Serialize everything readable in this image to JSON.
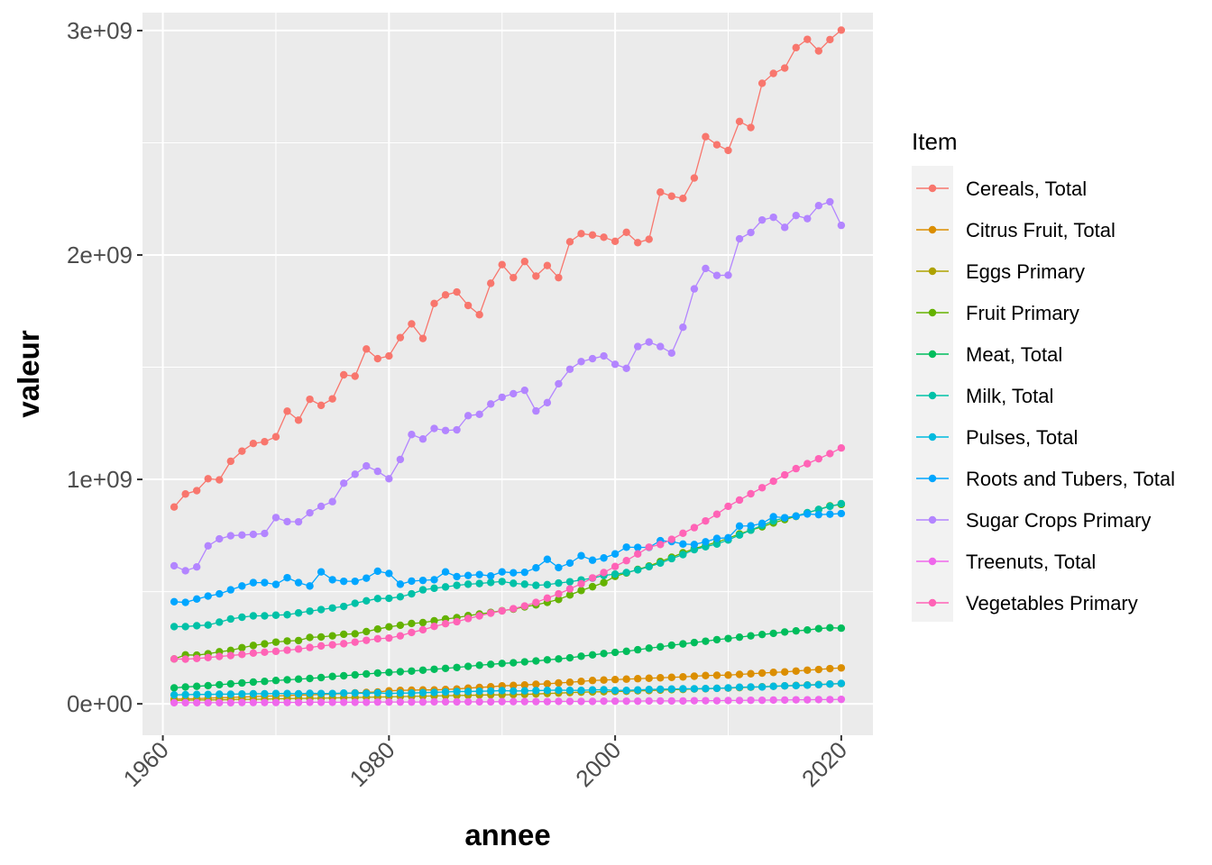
{
  "chart_data": {
    "type": "line",
    "xlabel": "annee",
    "ylabel": "valeur",
    "xlim": [
      1958.2,
      2022.8
    ],
    "ylim": [
      -140000000,
      3080000000
    ],
    "x_ticks": [
      1960,
      1980,
      2000,
      2020
    ],
    "x_tick_labels": [
      "1960",
      "1980",
      "2000",
      "2020"
    ],
    "y_ticks": [
      0,
      1000000000,
      2000000000,
      3000000000
    ],
    "y_tick_labels": [
      "0e+00",
      "1e+09",
      "2e+09",
      "3e+09"
    ],
    "grid": true,
    "legend_title": "Item",
    "legend_position": "right",
    "x": [
      1961,
      1962,
      1963,
      1964,
      1965,
      1966,
      1967,
      1968,
      1969,
      1970,
      1971,
      1972,
      1973,
      1974,
      1975,
      1976,
      1977,
      1978,
      1979,
      1980,
      1981,
      1982,
      1983,
      1984,
      1985,
      1986,
      1987,
      1988,
      1989,
      1990,
      1991,
      1992,
      1993,
      1994,
      1995,
      1996,
      1997,
      1998,
      1999,
      2000,
      2001,
      2002,
      2003,
      2004,
      2005,
      2006,
      2007,
      2008,
      2009,
      2010,
      2011,
      2012,
      2013,
      2014,
      2015,
      2016,
      2017,
      2018,
      2019,
      2020
    ],
    "series": [
      {
        "name": "Cereals, Total",
        "color": "#F8766D",
        "values": [
          877000000,
          935000000,
          950000000,
          1003000000,
          998000000,
          1081000000,
          1126000000,
          1160000000,
          1168000000,
          1190000000,
          1304000000,
          1264000000,
          1357000000,
          1330000000,
          1359000000,
          1466000000,
          1460000000,
          1581000000,
          1538000000,
          1550000000,
          1632000000,
          1693000000,
          1628000000,
          1784000000,
          1822000000,
          1835000000,
          1775000000,
          1734000000,
          1874000000,
          1957000000,
          1899000000,
          1971000000,
          1906000000,
          1953000000,
          1899000000,
          2059000000,
          2095000000,
          2089000000,
          2079000000,
          2061000000,
          2101000000,
          2055000000,
          2070000000,
          2280000000,
          2262000000,
          2252000000,
          2343000000,
          2527000000,
          2491000000,
          2466000000,
          2595000000,
          2568000000,
          2765000000,
          2809000000,
          2833000000,
          2924000000,
          2961000000,
          2909000000,
          2960000000,
          3002000000
        ]
      },
      {
        "name": "Citrus Fruit, Total",
        "color": "#DB8E00",
        "values": [
          21000000,
          22000000,
          23000000,
          25000000,
          27000000,
          28000000,
          30000000,
          32000000,
          34000000,
          35000000,
          37000000,
          39000000,
          40000000,
          42000000,
          44000000,
          46000000,
          49000000,
          51000000,
          53000000,
          58000000,
          60000000,
          61000000,
          62000000,
          62000000,
          64000000,
          66000000,
          70000000,
          73000000,
          76000000,
          80000000,
          82000000,
          84000000,
          87000000,
          89000000,
          93000000,
          96000000,
          100000000,
          104000000,
          106000000,
          108000000,
          110000000,
          112000000,
          114000000,
          116000000,
          118000000,
          120000000,
          123000000,
          126000000,
          127000000,
          128000000,
          131000000,
          134000000,
          137000000,
          140000000,
          142000000,
          146000000,
          150000000,
          153000000,
          157000000,
          160000000
        ]
      },
      {
        "name": "Eggs Primary",
        "color": "#AEA200",
        "values": [
          15000000,
          16000000,
          17000000,
          17000000,
          18000000,
          19000000,
          20000000,
          20000000,
          21000000,
          22000000,
          23000000,
          24000000,
          24000000,
          25000000,
          26000000,
          27000000,
          28000000,
          29000000,
          30000000,
          31000000,
          32000000,
          33000000,
          34000000,
          35000000,
          36000000,
          37000000,
          38000000,
          39000000,
          40000000,
          40000000,
          41000000,
          42000000,
          44000000,
          46000000,
          48000000,
          50000000,
          52000000,
          53000000,
          54000000,
          55000000,
          56000000,
          58000000,
          59000000,
          61000000,
          63000000,
          64000000,
          66000000,
          67000000,
          69000000,
          70000000,
          72000000,
          74000000,
          76000000,
          78000000,
          80000000,
          82000000,
          84000000,
          86000000,
          88000000,
          90000000
        ]
      },
      {
        "name": "Fruit Primary",
        "color": "#64B200",
        "values": [
          200000000,
          218000000,
          217000000,
          223000000,
          232000000,
          238000000,
          250000000,
          260000000,
          267000000,
          275000000,
          280000000,
          282000000,
          296000000,
          298000000,
          303000000,
          310000000,
          312000000,
          322000000,
          333000000,
          343000000,
          350000000,
          358000000,
          362000000,
          370000000,
          378000000,
          384000000,
          393000000,
          400000000,
          407000000,
          415000000,
          422000000,
          432000000,
          441000000,
          452000000,
          465000000,
          485000000,
          505000000,
          522000000,
          540000000,
          568000000,
          583000000,
          599000000,
          614000000,
          634000000,
          653000000,
          673000000,
          691000000,
          706000000,
          720000000,
          738000000,
          757000000,
          774000000,
          789000000,
          806000000,
          821000000,
          835000000,
          851000000,
          866000000,
          882000000,
          888000000
        ]
      },
      {
        "name": "Meat, Total",
        "color": "#00BD5C",
        "values": [
          71000000,
          75000000,
          78000000,
          81000000,
          85000000,
          89000000,
          93000000,
          97000000,
          100000000,
          104000000,
          107000000,
          110000000,
          113000000,
          117000000,
          122000000,
          125000000,
          129000000,
          133000000,
          137000000,
          140000000,
          143000000,
          146000000,
          150000000,
          154000000,
          158000000,
          162000000,
          167000000,
          172000000,
          176000000,
          180000000,
          183000000,
          187000000,
          191000000,
          196000000,
          200000000,
          205000000,
          212000000,
          218000000,
          224000000,
          229000000,
          234000000,
          241000000,
          248000000,
          254000000,
          261000000,
          267000000,
          273000000,
          279000000,
          286000000,
          291000000,
          297000000,
          303000000,
          309000000,
          314000000,
          320000000,
          325000000,
          329000000,
          335000000,
          339000000,
          337000000
        ]
      },
      {
        "name": "Milk, Total",
        "color": "#00C1A7",
        "values": [
          344000000,
          344000000,
          348000000,
          351000000,
          364000000,
          378000000,
          386000000,
          392000000,
          392000000,
          395000000,
          397000000,
          405000000,
          413000000,
          420000000,
          427000000,
          434000000,
          448000000,
          459000000,
          469000000,
          470000000,
          477000000,
          490000000,
          508000000,
          515000000,
          521000000,
          528000000,
          533000000,
          536000000,
          541000000,
          545000000,
          537000000,
          533000000,
          528000000,
          531000000,
          538000000,
          544000000,
          552000000,
          560000000,
          572000000,
          578000000,
          585000000,
          597000000,
          611000000,
          627000000,
          647000000,
          665000000,
          687000000,
          700000000,
          712000000,
          730000000,
          752000000,
          774000000,
          795000000,
          815000000,
          829000000,
          837000000,
          852000000,
          866000000,
          880000000,
          892000000
        ]
      },
      {
        "name": "Pulses, Total",
        "color": "#00BADE",
        "values": [
          40000000,
          41000000,
          42000000,
          42000000,
          43000000,
          43000000,
          44000000,
          45000000,
          45000000,
          46000000,
          46000000,
          45000000,
          47000000,
          46000000,
          46000000,
          48000000,
          48000000,
          47000000,
          49000000,
          46000000,
          48000000,
          48000000,
          50000000,
          51000000,
          53000000,
          55000000,
          55000000,
          56000000,
          57000000,
          59000000,
          57000000,
          58000000,
          59000000,
          60000000,
          61000000,
          60000000,
          60000000,
          62000000,
          63000000,
          60000000,
          60000000,
          62000000,
          64000000,
          65000000,
          66000000,
          67000000,
          67000000,
          68000000,
          69000000,
          71000000,
          74000000,
          75000000,
          75000000,
          78000000,
          80000000,
          81000000,
          83000000,
          85000000,
          88000000,
          91000000
        ]
      },
      {
        "name": "Roots and Tubers, Total",
        "color": "#00A6FF",
        "values": [
          455000000,
          452000000,
          467000000,
          480000000,
          490000000,
          508000000,
          525000000,
          540000000,
          540000000,
          532000000,
          562000000,
          540000000,
          525000000,
          588000000,
          553000000,
          546000000,
          546000000,
          560000000,
          591000000,
          581000000,
          533000000,
          547000000,
          550000000,
          553000000,
          588000000,
          567000000,
          572000000,
          576000000,
          570000000,
          588000000,
          584000000,
          586000000,
          606000000,
          644000000,
          607000000,
          627000000,
          660000000,
          640000000,
          650000000,
          668000000,
          698000000,
          697000000,
          697000000,
          727000000,
          723000000,
          712000000,
          710000000,
          722000000,
          737000000,
          740000000,
          792000000,
          793000000,
          804000000,
          834000000,
          829000000,
          836000000,
          846000000,
          843000000,
          845000000,
          848000000
        ]
      },
      {
        "name": "Sugar Crops Primary",
        "color": "#B385FF",
        "values": [
          615000000,
          593000000,
          610000000,
          704000000,
          735000000,
          749000000,
          752000000,
          755000000,
          759000000,
          830000000,
          812000000,
          811000000,
          851000000,
          880000000,
          901000000,
          983000000,
          1023000000,
          1060000000,
          1036000000,
          1003000000,
          1089000000,
          1200000000,
          1180000000,
          1227000000,
          1218000000,
          1221000000,
          1284000000,
          1290000000,
          1336000000,
          1366000000,
          1382000000,
          1397000000,
          1305000000,
          1342000000,
          1426000000,
          1491000000,
          1525000000,
          1538000000,
          1550000000,
          1513000000,
          1495000000,
          1592000000,
          1612000000,
          1592000000,
          1563000000,
          1678000000,
          1849000000,
          1940000000,
          1909000000,
          1910000000,
          2072000000,
          2100000000,
          2156000000,
          2168000000,
          2123000000,
          2176000000,
          2162000000,
          2220000000,
          2237000000,
          2132000000
        ]
      },
      {
        "name": "Treenuts, Total",
        "color": "#EF67EB",
        "values": [
          5000000,
          5000000,
          5000000,
          5000000,
          5000000,
          5000000,
          6000000,
          6000000,
          6000000,
          6000000,
          6000000,
          6000000,
          7000000,
          7000000,
          7000000,
          7000000,
          7000000,
          7000000,
          8000000,
          8000000,
          8000000,
          8000000,
          8000000,
          9000000,
          9000000,
          9000000,
          9000000,
          9000000,
          9000000,
          10000000,
          10000000,
          10000000,
          10000000,
          10000000,
          11000000,
          11000000,
          11000000,
          11000000,
          12000000,
          12000000,
          12000000,
          12000000,
          13000000,
          13000000,
          13000000,
          13000000,
          14000000,
          14000000,
          14000000,
          15000000,
          15000000,
          16000000,
          16000000,
          17000000,
          17000000,
          18000000,
          18000000,
          19000000,
          19000000,
          20000000
        ]
      },
      {
        "name": "Vegetables Primary",
        "color": "#FF63B6",
        "values": [
          200000000,
          199000000,
          202000000,
          206000000,
          211000000,
          215000000,
          220000000,
          226000000,
          230000000,
          234000000,
          239000000,
          244000000,
          251000000,
          258000000,
          263000000,
          268000000,
          275000000,
          283000000,
          290000000,
          293000000,
          303000000,
          318000000,
          330000000,
          345000000,
          357000000,
          366000000,
          380000000,
          392000000,
          404000000,
          414000000,
          424000000,
          436000000,
          452000000,
          471000000,
          490000000,
          512000000,
          535000000,
          561000000,
          585000000,
          612000000,
          638000000,
          668000000,
          698000000,
          710000000,
          733000000,
          760000000,
          785000000,
          815000000,
          845000000,
          880000000,
          908000000,
          936000000,
          963000000,
          992000000,
          1020000000,
          1048000000,
          1070000000,
          1092000000,
          1115000000,
          1140000000
        ]
      }
    ]
  }
}
